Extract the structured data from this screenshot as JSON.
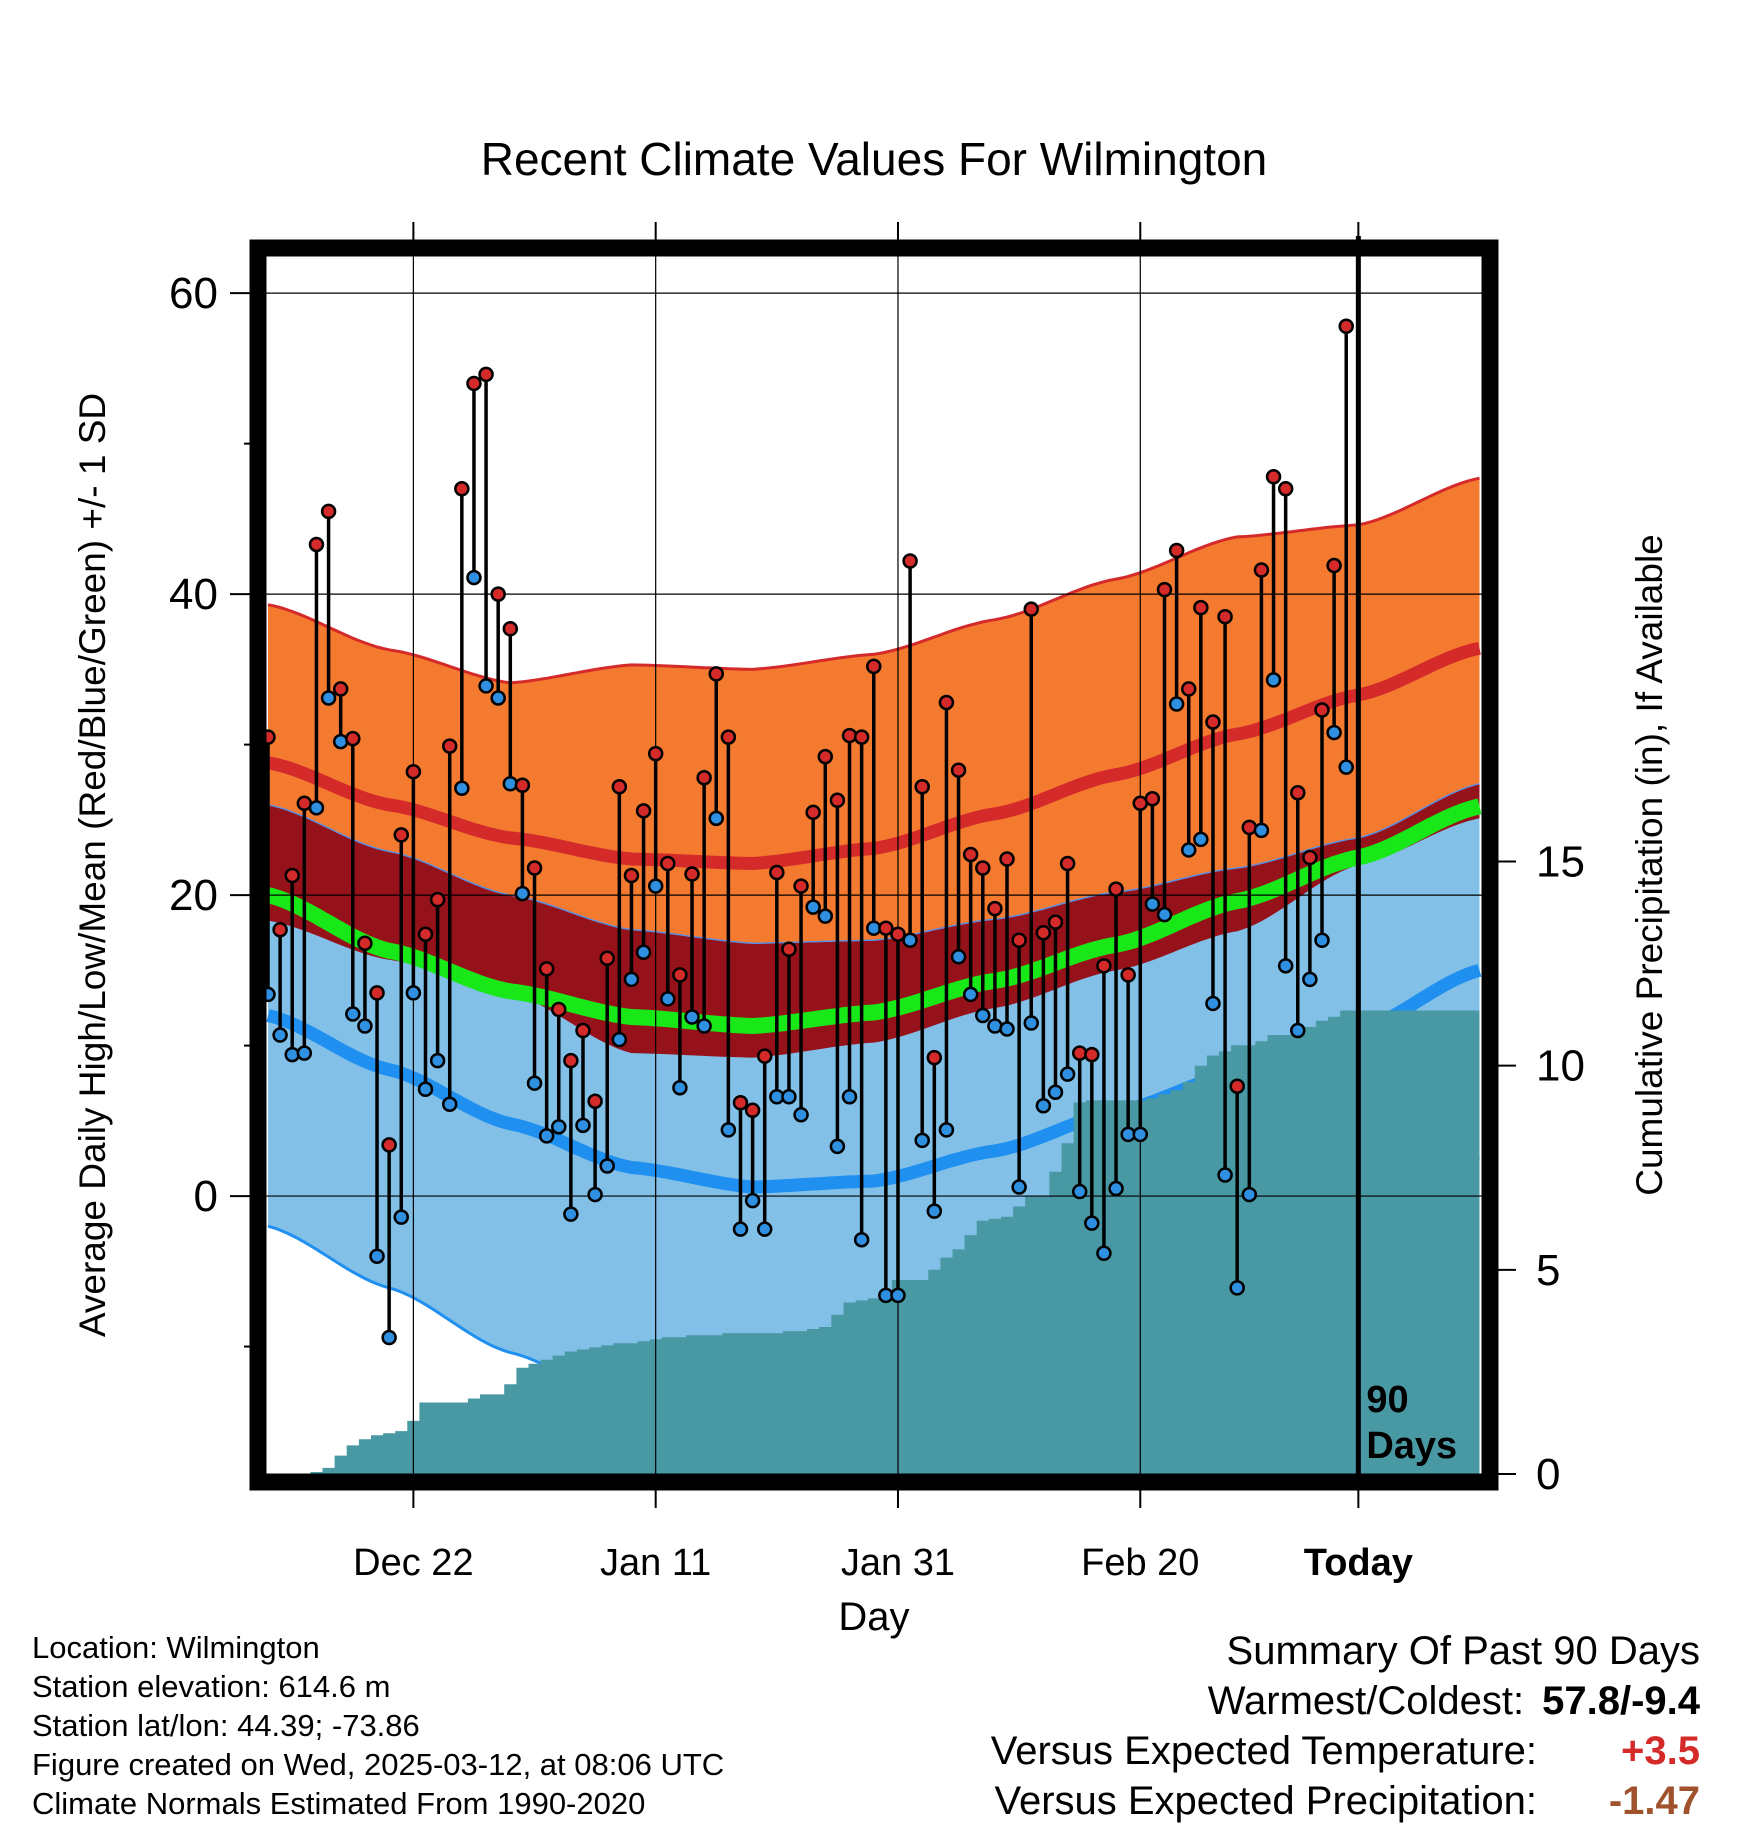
{
  "chart_data": {
    "type": "line",
    "title": "Recent Climate Values For Wilmington",
    "xlabel": "Day",
    "ylabel": "Average Daily High/Low/Mean (Red/Blue/Green) +/- 1 SD",
    "y2label": "Cumulative Precipitation (in), If Available",
    "x_ticks": [
      "Dec 22",
      "Jan 11",
      "Jan 31",
      "Feb 20",
      "Today"
    ],
    "y_ticks": [
      "0",
      "20",
      "40",
      "60"
    ],
    "y2_ticks": [
      "0",
      "5",
      "10",
      "15"
    ],
    "ylim": [
      -19,
      63
    ],
    "y2lim": [
      0,
      30
    ],
    "days": 101,
    "today_index": 90,
    "window_label": [
      "90",
      "Days"
    ],
    "grid": true,
    "colors": {
      "high_band": "#f47a30",
      "high_normal": "#d42a2a",
      "overlap_band": "#96121a",
      "mean_normal": "#18e818",
      "low_band": "#82c0e8",
      "low_normal": "#1f8ff0",
      "precip": "#4899a4",
      "high_dot": "#d42a2a",
      "low_dot": "#2f8fe0"
    },
    "normals": {
      "high": {
        "knots_x": [
          0,
          10,
          20,
          30,
          40,
          50,
          60,
          70,
          80,
          90,
          100
        ],
        "values": [
          28.8,
          26.0,
          23.8,
          22.4,
          22.1,
          23.1,
          25.4,
          28.0,
          30.7,
          33.3,
          36.4
        ],
        "sd": [
          10.5,
          10.3,
          10.3,
          12.9,
          12.9,
          12.9,
          12.9,
          13.0,
          13.1,
          11.3,
          11.3
        ]
      },
      "low": {
        "knots_x": [
          0,
          10,
          20,
          30,
          40,
          50,
          60,
          70,
          80,
          90,
          100
        ],
        "values": [
          12.0,
          8.4,
          4.8,
          1.9,
          0.6,
          1.0,
          3.0,
          5.6,
          8.2,
          11.0,
          15.0
        ],
        "sd": [
          14.0,
          14.5,
          15.2,
          15.8,
          16.2,
          16.0,
          15.4,
          14.6,
          13.6,
          12.8,
          12.4
        ]
      },
      "mean": {
        "knots_x": [
          0,
          10,
          20,
          30,
          40,
          50,
          60,
          70,
          80,
          90,
          100
        ],
        "values": [
          20.0,
          16.3,
          13.6,
          11.9,
          11.3,
          12.2,
          14.3,
          16.7,
          19.6,
          22.5,
          25.9
        ]
      }
    },
    "daily_high": [
      30.5,
      17.7,
      21.3,
      26.1,
      43.3,
      45.5,
      33.7,
      30.4,
      16.8,
      13.5,
      3.4,
      24.0,
      28.2,
      17.4,
      19.7,
      29.9,
      47.0,
      54.0,
      54.6,
      40.0,
      37.7,
      27.3,
      21.8,
      15.1,
      12.4,
      9.0,
      11.0,
      6.3,
      15.8,
      27.2,
      21.3,
      25.6,
      29.4,
      22.1,
      14.7,
      21.4,
      27.8,
      34.7,
      30.5,
      6.2,
      5.7,
      9.3,
      21.5,
      16.4,
      20.6,
      25.5,
      29.2,
      26.3,
      30.6,
      30.5,
      35.2,
      17.8,
      17.4,
      42.2,
      27.2,
      9.2,
      32.8,
      28.3,
      22.7,
      21.8,
      19.1,
      22.4,
      17.0,
      39.0,
      17.5,
      18.2,
      22.1,
      9.5,
      9.4,
      15.3,
      20.4,
      14.7,
      26.1,
      26.4,
      40.3,
      42.9,
      33.7,
      39.1,
      31.5,
      38.5,
      7.3,
      24.5,
      41.6,
      47.8,
      47.0,
      26.8,
      22.5,
      32.3,
      41.9,
      57.8
    ],
    "daily_low": [
      13.4,
      10.7,
      9.4,
      9.5,
      25.8,
      33.1,
      30.2,
      12.1,
      11.3,
      -4.0,
      -9.4,
      -1.4,
      13.5,
      7.1,
      9.0,
      6.1,
      27.1,
      41.1,
      33.9,
      33.1,
      27.4,
      20.1,
      7.5,
      4.0,
      4.6,
      -1.2,
      4.7,
      0.1,
      2.0,
      10.4,
      14.4,
      16.2,
      20.6,
      13.1,
      7.2,
      11.9,
      11.3,
      25.1,
      4.4,
      -2.2,
      -0.3,
      -2.2,
      6.6,
      6.6,
      5.4,
      19.2,
      18.6,
      3.3,
      6.6,
      -2.9,
      17.8,
      -6.6,
      -6.6,
      17.0,
      3.7,
      -1.0,
      4.4,
      15.9,
      13.4,
      12.0,
      11.3,
      11.1,
      0.6,
      11.5,
      6.0,
      6.9,
      8.1,
      0.3,
      -1.8,
      -3.8,
      0.5,
      4.1,
      4.1,
      19.4,
      18.7,
      32.7,
      23.0,
      23.7,
      12.8,
      1.4,
      -6.1,
      0.1,
      24.3,
      34.3,
      15.3,
      11.0,
      14.4,
      17.0,
      30.8,
      28.5
    ],
    "precip_cumulative": [
      0.0,
      0.0,
      0.0,
      0.0,
      0.05,
      0.15,
      0.45,
      0.7,
      0.85,
      0.95,
      1.0,
      1.05,
      1.3,
      1.75,
      1.75,
      1.75,
      1.75,
      1.85,
      1.95,
      1.95,
      2.2,
      2.6,
      2.7,
      2.8,
      2.9,
      3.0,
      3.05,
      3.1,
      3.15,
      3.2,
      3.2,
      3.25,
      3.3,
      3.35,
      3.35,
      3.4,
      3.4,
      3.4,
      3.45,
      3.45,
      3.45,
      3.45,
      3.45,
      3.5,
      3.5,
      3.55,
      3.6,
      3.9,
      4.2,
      4.25,
      4.3,
      4.35,
      4.75,
      4.75,
      4.75,
      5.0,
      5.3,
      5.5,
      5.85,
      6.2,
      6.25,
      6.3,
      6.55,
      6.8,
      6.8,
      7.4,
      8.1,
      9.1,
      9.15,
      9.15,
      9.15,
      9.15,
      9.15,
      9.2,
      9.3,
      9.4,
      9.6,
      10.0,
      10.25,
      10.35,
      10.5,
      10.5,
      10.6,
      10.75,
      10.75,
      10.85,
      10.95,
      11.1,
      11.2,
      11.35,
      11.35,
      11.35,
      11.35,
      11.35,
      11.35,
      11.35,
      11.35,
      11.35,
      11.35,
      11.35,
      11.35
    ]
  },
  "info": {
    "location": "Location: Wilmington",
    "elevation": "Station elevation: 614.6 m",
    "latlon": "Station lat/lon: 44.39; -73.86",
    "created": "Figure created on Wed, 2025-03-12, at 08:06 UTC",
    "normals": "Climate Normals Estimated From 1990-2020"
  },
  "summary": {
    "title": "Summary Of Past 90 Days",
    "warmest_coldest_label": "Warmest/Coldest:",
    "warmest_coldest_value": "57.8/-9.4",
    "temp_label": "Versus Expected Temperature:",
    "temp_value": "+3.5",
    "temp_color": "#d42a2a",
    "precip_label": "Versus Expected Precipitation:",
    "precip_value": "-1.47",
    "precip_color": "#a0522d"
  }
}
